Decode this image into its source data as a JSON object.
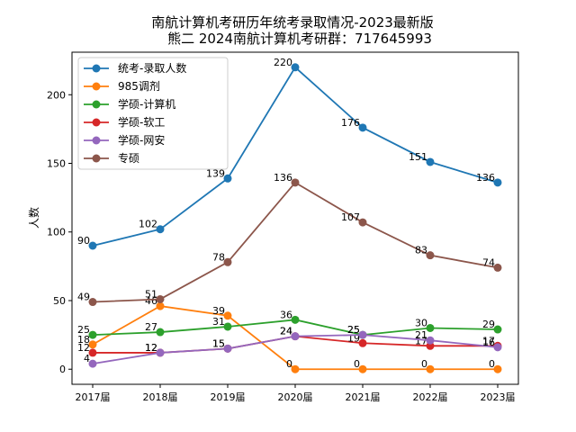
{
  "chart_data": {
    "type": "line",
    "title": "南航计算机考研历年统考录取情况-2023最新版",
    "subtitle": "熊二 2024南航计算机考研群：717645993",
    "xlabel": "",
    "ylabel": "人数",
    "ylim": [
      -11,
      231
    ],
    "yticks": [
      0,
      50,
      100,
      150,
      200
    ],
    "categories": [
      "2017届",
      "2018届",
      "2019届",
      "2020届",
      "2021届",
      "2022届",
      "2023届"
    ],
    "legend_position": "upper-left",
    "series": [
      {
        "name": "统考-录取人数",
        "color": "#1f77b4",
        "values": [
          90,
          102,
          139,
          220,
          176,
          151,
          136
        ]
      },
      {
        "name": "985调剂",
        "color": "#ff7f0e",
        "values": [
          18,
          46,
          39,
          0,
          0,
          0,
          0
        ]
      },
      {
        "name": "学硕-计算机",
        "color": "#2ca02c",
        "values": [
          25,
          27,
          31,
          36,
          25,
          30,
          29
        ]
      },
      {
        "name": "学硕-软工",
        "color": "#d62728",
        "values": [
          12,
          12,
          15,
          24,
          19,
          17,
          17
        ]
      },
      {
        "name": "学硕-网安",
        "color": "#9467bd",
        "values": [
          4,
          12,
          15,
          24,
          25,
          21,
          16
        ]
      },
      {
        "name": "专硕",
        "color": "#8c564b",
        "values": [
          49,
          51,
          78,
          136,
          107,
          83,
          74
        ]
      }
    ]
  }
}
